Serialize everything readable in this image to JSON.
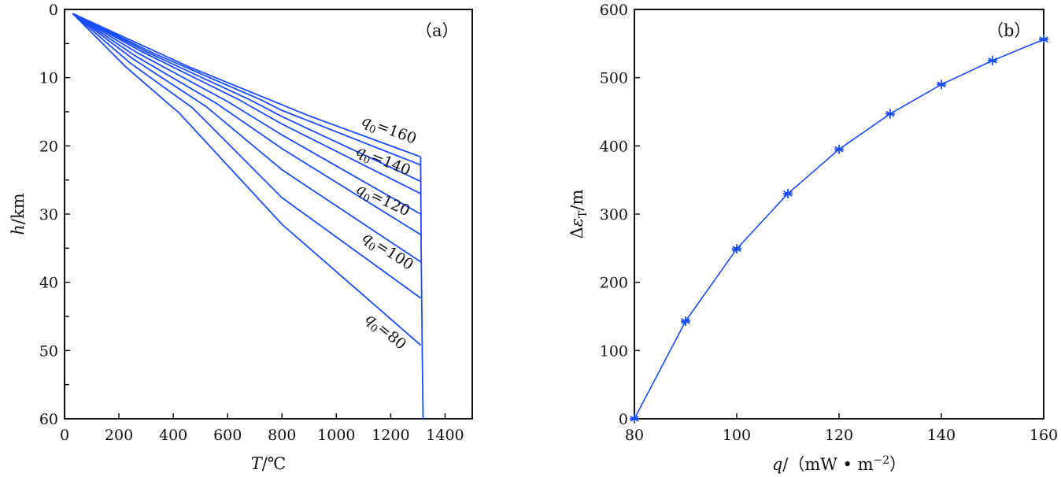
{
  "chart_data": [
    {
      "type": "line",
      "panel_label": "（a）",
      "xlabel_var": "T",
      "xlabel_unit": "/℃",
      "ylabel_var": "h",
      "ylabel_unit": "/km",
      "xlim": [
        0,
        1500
      ],
      "ylim": [
        60,
        0
      ],
      "xticks": [
        0,
        200,
        400,
        600,
        800,
        1000,
        1200,
        1400
      ],
      "yticks": [
        0,
        10,
        20,
        30,
        40,
        50,
        60
      ],
      "yminor": [
        5,
        15,
        25,
        35,
        45,
        55
      ],
      "color": "#1a4cff",
      "series": [
        {
          "name": "q0=80",
          "q0": 80,
          "points": [
            [
              30,
              0.6
            ],
            [
              225,
              8.4
            ],
            [
              393,
              14.2
            ],
            [
              420,
              15.1
            ],
            [
              800,
              31.5
            ],
            [
              1310,
              49.2
            ]
          ]
        },
        {
          "name": "q0=90",
          "q0": 90,
          "points": [
            [
              30,
              0.6
            ],
            [
              240,
              7.8
            ],
            [
              470,
              14.4
            ],
            [
              800,
              27.6
            ],
            [
              1310,
              42.3
            ]
          ]
        },
        {
          "name": "q0=100",
          "q0": 100,
          "points": [
            [
              30,
              0.6
            ],
            [
              250,
              7.2
            ],
            [
              520,
              14.2
            ],
            [
              800,
              23.5
            ],
            [
              1310,
              37
            ]
          ]
        },
        {
          "name": "q0=110",
          "q0": 110,
          "points": [
            [
              30,
              0.6
            ],
            [
              260,
              6.8
            ],
            [
              560,
              13.8
            ],
            [
              800,
              20.4
            ],
            [
              1310,
              33
            ]
          ]
        },
        {
          "name": "q0=120",
          "q0": 120,
          "points": [
            [
              30,
              0.6
            ],
            [
              270,
              6.4
            ],
            [
              600,
              13.5
            ],
            [
              800,
              18.4
            ],
            [
              1310,
              30
            ]
          ]
        },
        {
          "name": "q0=130",
          "q0": 130,
          "points": [
            [
              30,
              0.6
            ],
            [
              280,
              6.1
            ],
            [
              640,
              13.2
            ],
            [
              800,
              16.8
            ],
            [
              1310,
              27
            ]
          ]
        },
        {
          "name": "q0=140",
          "q0": 140,
          "points": [
            [
              30,
              0.6
            ],
            [
              300,
              6.2
            ],
            [
              680,
              13.2
            ],
            [
              800,
              15.7
            ],
            [
              1310,
              25.2
            ]
          ]
        },
        {
          "name": "q0=150",
          "q0": 150,
          "points": [
            [
              30,
              0.6
            ],
            [
              320,
              6.3
            ],
            [
              720,
              13.2
            ],
            [
              800,
              14.8
            ],
            [
              1310,
              22.8
            ]
          ]
        },
        {
          "name": "q0=160",
          "q0": 160,
          "points": [
            [
              30,
              0.6
            ],
            [
              457,
              8.4
            ],
            [
              900,
              15.6
            ],
            [
              1310,
              21.6
            ]
          ]
        }
      ],
      "asymptote": {
        "points": [
          [
            1310,
            21.6
          ],
          [
            1312,
            35
          ],
          [
            1316,
            50
          ],
          [
            1319,
            60
          ]
        ]
      },
      "annotations": [
        {
          "sub": "0",
          "var": "q",
          "text": "=160"
        },
        {
          "sub": "0",
          "var": "q",
          "text": "=140"
        },
        {
          "sub": "0",
          "var": "q",
          "text": "=120"
        },
        {
          "sub": "0",
          "var": "q",
          "text": "=100"
        },
        {
          "sub": "0",
          "var": "q",
          "text": "=80"
        }
      ]
    },
    {
      "type": "line",
      "panel_label": "（b）",
      "xlabel_var": "q",
      "xlabel_unit": "/（mW • m",
      "xlabel_sup": "−2",
      "xlabel_close": "）",
      "ylabel_prefix": "Δ",
      "ylabel_var": "ε",
      "ylabel_sub": "T",
      "ylabel_unit": "/m",
      "xlim": [
        80,
        160
      ],
      "ylim": [
        0,
        600
      ],
      "xticks": [
        80,
        100,
        120,
        140,
        160
      ],
      "yticks": [
        0,
        100,
        200,
        300,
        400,
        500,
        600
      ],
      "color": "#1a4cff",
      "marker": "asterisk",
      "x": [
        80,
        90,
        100,
        110,
        120,
        130,
        140,
        150,
        160
      ],
      "y": [
        0,
        143,
        249,
        330,
        395,
        447,
        490,
        525,
        556
      ]
    }
  ]
}
